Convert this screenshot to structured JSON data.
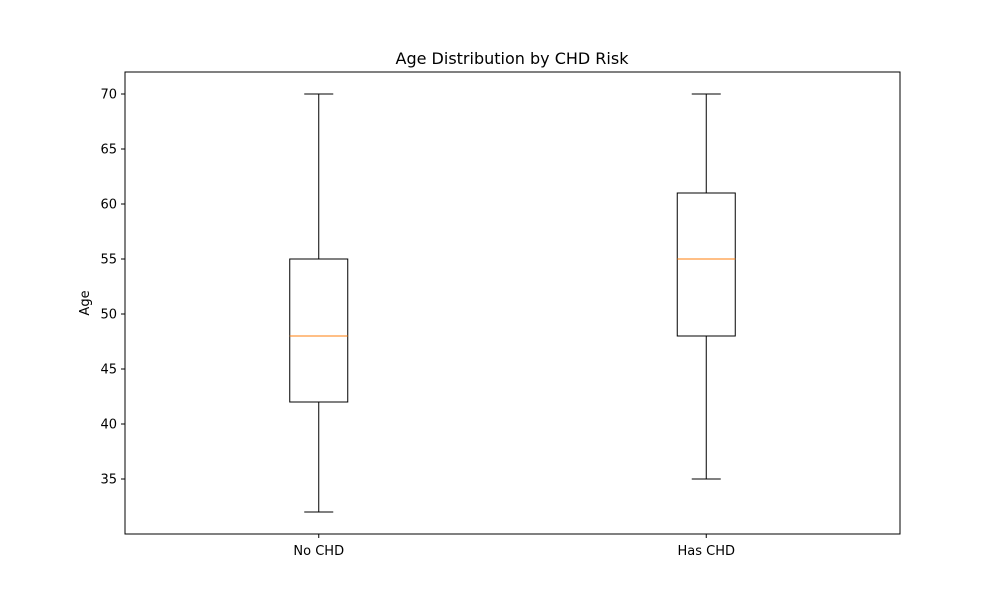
{
  "chart_data": {
    "type": "box",
    "title": "Age Distribution by CHD Risk",
    "xlabel": "",
    "ylabel": "Age",
    "categories": [
      "No CHD",
      "Has CHD"
    ],
    "boxes": [
      {
        "label": "No CHD",
        "whisker_low": 32,
        "q1": 42,
        "median": 48,
        "q3": 55,
        "whisker_high": 70
      },
      {
        "label": "Has CHD",
        "whisker_low": 35,
        "q1": 48,
        "median": 55,
        "q3": 61,
        "whisker_high": 70
      }
    ],
    "ylim": [
      30,
      72
    ],
    "yticks": [
      35,
      40,
      45,
      50,
      55,
      60,
      65,
      70
    ],
    "grid": false,
    "median_color": "#ff7f0e",
    "box_color": "#000000"
  }
}
